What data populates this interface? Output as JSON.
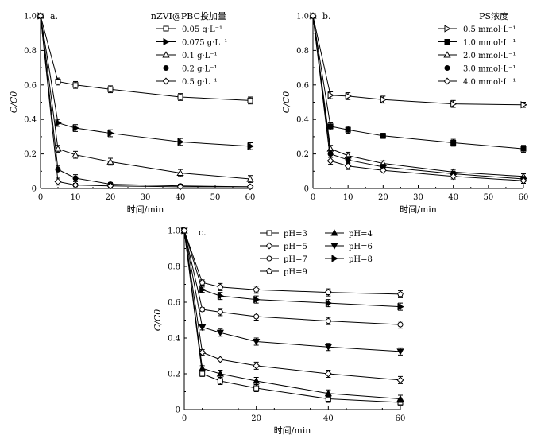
{
  "chart_data": [
    {
      "id": "a",
      "type": "line",
      "panel_label": "a.",
      "legend_title": "nZVI@PBC投加量",
      "xlabel": "时间/min",
      "ylabel": "C/C0",
      "xlim": [
        0,
        60
      ],
      "ylim": [
        0,
        1.0
      ],
      "xticks": [
        0,
        10,
        20,
        30,
        40,
        50,
        60
      ],
      "yticks": [
        0,
        0.2,
        0.4,
        0.6,
        0.8,
        1.0
      ],
      "x": [
        0,
        5,
        10,
        20,
        40,
        60
      ],
      "series": [
        {
          "name": "0.05 g·L⁻¹",
          "marker": "square-open",
          "values": [
            1.0,
            0.62,
            0.6,
            0.575,
            0.53,
            0.51
          ],
          "err": [
            0,
            0.02,
            0.02,
            0.02,
            0.02,
            0.02
          ]
        },
        {
          "name": "0.075 g·L⁻¹",
          "marker": "triangle-right-filled",
          "values": [
            1.0,
            0.38,
            0.35,
            0.32,
            0.27,
            0.245
          ],
          "err": [
            0,
            0.02,
            0.02,
            0.02,
            0.02,
            0.02
          ]
        },
        {
          "name": "0.1 g·L⁻¹",
          "marker": "triangle-up-open",
          "values": [
            1.0,
            0.23,
            0.195,
            0.155,
            0.09,
            0.055
          ],
          "err": [
            0,
            0.02,
            0.02,
            0.02,
            0.02,
            0.02
          ]
        },
        {
          "name": "0.2 g·L⁻¹",
          "marker": "circle-filled",
          "values": [
            1.0,
            0.11,
            0.06,
            0.025,
            0.015,
            0.01
          ],
          "err": [
            0,
            0.02,
            0.02,
            0.01,
            0.01,
            0.01
          ]
        },
        {
          "name": "0.5 g·L⁻¹",
          "marker": "diamond-open",
          "values": [
            1.0,
            0.04,
            0.02,
            0.015,
            0.01,
            0.01
          ],
          "err": [
            0,
            0.02,
            0.01,
            0.01,
            0.01,
            0.01
          ]
        }
      ]
    },
    {
      "id": "b",
      "type": "line",
      "panel_label": "b.",
      "legend_title": "PS浓度",
      "xlabel": "时间/min",
      "ylabel": "C/C0",
      "xlim": [
        0,
        60
      ],
      "ylim": [
        0,
        1.0
      ],
      "xticks": [
        0,
        10,
        20,
        30,
        40,
        50,
        60
      ],
      "yticks": [
        0,
        0.2,
        0.4,
        0.6,
        0.8,
        1.0
      ],
      "x": [
        0,
        5,
        10,
        20,
        40,
        60
      ],
      "series": [
        {
          "name": "0.5 mmol·L⁻¹",
          "marker": "triangle-right-open",
          "values": [
            1.0,
            0.54,
            0.535,
            0.515,
            0.49,
            0.485
          ],
          "err": [
            0,
            0.02,
            0.02,
            0.02,
            0.02,
            0.015
          ]
        },
        {
          "name": "1.0 mmol·L⁻¹",
          "marker": "square-filled",
          "values": [
            1.0,
            0.36,
            0.34,
            0.305,
            0.265,
            0.23
          ],
          "err": [
            0,
            0.02,
            0.02,
            0.015,
            0.02,
            0.02
          ]
        },
        {
          "name": "2.0 mmol·L⁻¹",
          "marker": "triangle-up-open",
          "values": [
            1.0,
            0.23,
            0.19,
            0.145,
            0.095,
            0.07
          ],
          "err": [
            0,
            0.02,
            0.02,
            0.015,
            0.015,
            0.015
          ]
        },
        {
          "name": "3.0 mmol·L⁻¹",
          "marker": "circle-filled",
          "values": [
            1.0,
            0.2,
            0.165,
            0.125,
            0.085,
            0.055
          ],
          "err": [
            0,
            0.02,
            0.02,
            0.015,
            0.015,
            0.015
          ]
        },
        {
          "name": "4.0 mmol·L⁻¹",
          "marker": "diamond-open",
          "values": [
            1.0,
            0.16,
            0.13,
            0.105,
            0.07,
            0.045
          ],
          "err": [
            0,
            0.02,
            0.02,
            0.015,
            0.015,
            0.015
          ]
        }
      ]
    },
    {
      "id": "c",
      "type": "line",
      "panel_label": "c.",
      "legend_title": "",
      "xlabel": "时间/min",
      "ylabel": "C/C0",
      "xlim": [
        0,
        60
      ],
      "ylim": [
        0,
        1.0
      ],
      "xticks": [
        0,
        20,
        40,
        60
      ],
      "yticks": [
        0,
        0.2,
        0.4,
        0.6,
        0.8,
        1.0
      ],
      "x": [
        0,
        5,
        10,
        20,
        40,
        60
      ],
      "series": [
        {
          "name": "pH=3",
          "marker": "square-open",
          "values": [
            1.0,
            0.2,
            0.16,
            0.12,
            0.06,
            0.04
          ],
          "err": [
            0,
            0.015,
            0.02,
            0.02,
            0.02,
            0.015
          ]
        },
        {
          "name": "pH=4",
          "marker": "triangle-up-filled",
          "values": [
            1.0,
            0.23,
            0.2,
            0.16,
            0.09,
            0.06
          ],
          "err": [
            0,
            0.015,
            0.02,
            0.02,
            0.02,
            0.02
          ]
        },
        {
          "name": "pH=5",
          "marker": "diamond-open",
          "values": [
            1.0,
            0.32,
            0.28,
            0.245,
            0.2,
            0.165
          ],
          "err": [
            0,
            0.015,
            0.02,
            0.02,
            0.02,
            0.02
          ]
        },
        {
          "name": "pH=6",
          "marker": "triangle-down-filled",
          "values": [
            1.0,
            0.46,
            0.43,
            0.38,
            0.35,
            0.325
          ],
          "err": [
            0,
            0.015,
            0.02,
            0.02,
            0.02,
            0.02
          ]
        },
        {
          "name": "pH=7",
          "marker": "circle-open",
          "values": [
            1.0,
            0.56,
            0.545,
            0.52,
            0.495,
            0.475
          ],
          "err": [
            0,
            0.01,
            0.02,
            0.02,
            0.02,
            0.02
          ]
        },
        {
          "name": "pH=8",
          "marker": "triangle-right-filled",
          "values": [
            1.0,
            0.67,
            0.635,
            0.615,
            0.595,
            0.575
          ],
          "err": [
            0,
            0.015,
            0.02,
            0.02,
            0.02,
            0.02
          ]
        },
        {
          "name": "pH=9",
          "marker": "pentagon-open",
          "values": [
            1.0,
            0.71,
            0.685,
            0.67,
            0.655,
            0.645
          ],
          "err": [
            0,
            0.015,
            0.02,
            0.02,
            0.02,
            0.02
          ]
        }
      ]
    }
  ]
}
